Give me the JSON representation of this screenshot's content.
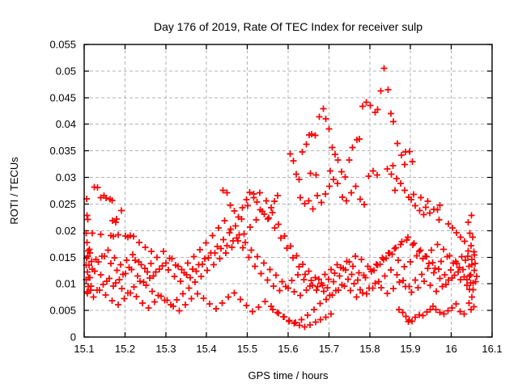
{
  "window": {
    "background": "#ffffff"
  },
  "chart_data": {
    "type": "scatter",
    "title": "Day 176 of 2019, Rate Of TEC Index for receiver sulp",
    "xlabel": "GPS time / hours",
    "ylabel": "ROTI / TECUs",
    "xlim": [
      15.1,
      16.1
    ],
    "ylim": [
      0,
      0.055
    ],
    "xticks": [
      15.1,
      15.2,
      15.3,
      15.4,
      15.5,
      15.6,
      15.7,
      15.8,
      15.9,
      16,
      16.1
    ],
    "xtick_labels": [
      "15.1",
      "15.2",
      "15.3",
      "15.4",
      "15.5",
      "15.6",
      "15.7",
      "15.8",
      "15.9",
      "16",
      "16.1"
    ],
    "yticks": [
      0,
      0.005,
      0.01,
      0.015,
      0.02,
      0.025,
      0.03,
      0.035,
      0.04,
      0.045,
      0.05,
      0.055
    ],
    "ytick_labels": [
      "0",
      "0.005",
      "0.01",
      "0.015",
      "0.02",
      "0.025",
      "0.03",
      "0.035",
      "0.04",
      "0.045",
      "0.05",
      "0.055"
    ],
    "grid": true,
    "grid_color": "#b3b3b3",
    "axis_color": "#000000",
    "legend": "none",
    "marker": "plus",
    "marker_color": "#ff0000",
    "tracks": [
      {
        "x_start": 15.105,
        "x_step": 0.015,
        "y": [
          0.0135,
          0.0128,
          0.0141,
          0.0152,
          0.0138,
          0.0125,
          0.0118,
          0.0131,
          0.0144,
          0.0136,
          0.0122,
          0.0115,
          0.0128,
          0.0139,
          0.0147,
          0.0133,
          0.0121,
          0.0112,
          0.0124,
          0.0137,
          0.0149,
          0.0158,
          0.0166,
          0.0172,
          0.0181,
          0.0192,
          0.0178,
          0.0163,
          0.0151,
          0.0139,
          0.0127,
          0.0116,
          0.0104,
          0.0092,
          0.0085,
          0.0078,
          0.0088,
          0.0097,
          0.0109,
          0.0118,
          0.0127,
          0.0136,
          0.0129,
          0.0141,
          0.0152,
          0.0146,
          0.0133,
          0.0125,
          0.0137,
          0.0148,
          0.0156,
          0.0144,
          0.0132,
          0.0141,
          0.0153,
          0.0147,
          0.0138,
          0.0129,
          0.0142,
          0.0151,
          0.0139,
          0.0131,
          0.0144,
          0.0136
        ]
      },
      {
        "x_start": 15.108,
        "x_step": 0.015,
        "y": [
          0.0082,
          0.0075,
          0.0088,
          0.0079,
          0.0068,
          0.0061,
          0.0072,
          0.0083,
          0.0076,
          0.0064,
          0.0055,
          0.0066,
          0.0077,
          0.0069,
          0.0058,
          0.0049,
          0.0061,
          0.0072,
          0.0081,
          0.0073,
          0.0062,
          0.0053,
          0.0064,
          0.0075,
          0.0083,
          0.0071,
          0.0059,
          0.0048,
          0.0056,
          0.0067,
          0.0058,
          0.0046,
          0.0038,
          0.0031,
          0.0027,
          0.0033,
          0.0041,
          0.0052,
          0.0063,
          0.0071,
          0.0079,
          0.0088,
          0.0096,
          0.0087,
          0.0075,
          0.0083,
          0.0092,
          0.0101,
          0.0093,
          0.0082,
          0.0091,
          0.0103,
          0.0095,
          0.0084,
          0.0093,
          0.0105,
          0.0097,
          0.0086,
          0.0095,
          0.0107,
          0.0116,
          0.0108,
          0.0097,
          0.0089
        ]
      },
      {
        "x_start": 15.111,
        "x_step": 0.015,
        "y": [
          0.0112,
          0.0124,
          0.0117,
          0.0105,
          0.0096,
          0.0108,
          0.0119,
          0.0127,
          0.0115,
          0.0103,
          0.0111,
          0.0122,
          0.0134,
          0.0126,
          0.0114,
          0.0105,
          0.0117,
          0.0128,
          0.0136,
          0.0147,
          0.0158,
          0.017,
          0.0183,
          0.0196,
          0.0209,
          0.0222,
          0.0247,
          0.0262,
          0.0271,
          0.0256,
          0.0234,
          0.0212,
          0.019,
          0.0171,
          0.0153,
          0.0137,
          0.0124,
          0.0112,
          0.0101,
          0.0093,
          0.0104,
          0.0115,
          0.0126,
          0.0118,
          0.0107,
          0.0116,
          0.0128,
          0.0137,
          0.0149,
          0.0158,
          0.0166,
          0.0174,
          0.0182,
          0.0173,
          0.0161,
          0.0152,
          0.0163,
          0.0174,
          0.0165,
          0.0153,
          0.0142,
          0.0151,
          0.0162,
          0.0154
        ]
      },
      {
        "x_start": 15.114,
        "x_step": 0.015,
        "y": [
          0.0158,
          0.0146,
          0.0152,
          0.0163,
          0.0149,
          0.0136,
          0.0144,
          0.0155,
          0.0141,
          0.0129,
          0.0138,
          0.015,
          0.0161,
          0.0148,
          0.0135,
          0.0127,
          0.0139,
          0.0151,
          0.0164,
          0.0177,
          0.0191,
          0.0205,
          0.0219,
          0.0203,
          0.0186,
          0.0168,
          0.015,
          0.0133,
          0.0119,
          0.0107,
          0.0096,
          0.0087,
          0.0095,
          0.0106,
          0.0117,
          0.0108,
          0.0096,
          0.0088,
          0.0097,
          0.0109,
          0.012,
          0.0131,
          0.0142,
          0.0133,
          0.0121,
          0.0112,
          0.0123,
          0.0135,
          0.0146,
          0.0157,
          0.0168,
          0.0179,
          0.0188,
          0.0176,
          0.0163,
          0.0151,
          0.014,
          0.0128,
          0.0117,
          0.0126,
          0.0138,
          0.0127,
          0.0115,
          0.0104
        ]
      },
      {
        "x_start": 15.117,
        "x_step": 0.015,
        "y": [
          0.0096,
          0.0088,
          0.0099,
          0.011,
          0.0102,
          0.0091,
          0.0083,
          0.0094,
          0.0105,
          0.0097,
          0.0086,
          0.0078,
          0.0069,
          0.0061,
          0.007,
          0.0081,
          0.0092,
          0.0103,
          0.0114,
          0.0125,
          0.0136,
          0.0147,
          0.0158,
          0.0169,
          0.0181,
          0.0194,
          0.0207,
          0.022,
          0.0236,
          0.0224,
          0.0205,
          0.0186,
          0.0167,
          0.0149,
          0.0132,
          0.0118,
          0.0106,
          0.0095,
          0.0086,
          0.0078,
          0.0087,
          0.0098,
          0.0109,
          0.01,
          0.0089,
          0.0081,
          0.0092,
          0.0104,
          0.0115,
          0.0126,
          0.0117,
          0.0106,
          0.0095,
          0.0107,
          0.0118,
          0.0129,
          0.0121,
          0.011,
          0.0099,
          0.0111,
          0.0122,
          0.0113,
          0.0102,
          0.0114
        ]
      }
    ],
    "points": [
      [
        15.125,
        0.0282
      ],
      [
        15.133,
        0.0281
      ],
      [
        15.141,
        0.0262
      ],
      [
        15.149,
        0.0266
      ],
      [
        15.154,
        0.0261
      ],
      [
        15.163,
        0.0259
      ],
      [
        15.168,
        0.0257
      ],
      [
        15.106,
        0.026
      ],
      [
        15.107,
        0.0229
      ],
      [
        15.109,
        0.0221
      ],
      [
        15.169,
        0.0219
      ],
      [
        15.177,
        0.0216
      ],
      [
        15.179,
        0.0222
      ],
      [
        15.191,
        0.0238
      ],
      [
        15.12,
        0.0195
      ],
      [
        15.141,
        0.0193
      ],
      [
        15.165,
        0.0191
      ],
      [
        15.171,
        0.0189
      ],
      [
        15.183,
        0.0192
      ],
      [
        15.201,
        0.019
      ],
      [
        15.207,
        0.0188
      ],
      [
        15.213,
        0.0191
      ],
      [
        15.221,
        0.0189
      ],
      [
        15.235,
        0.0178
      ],
      [
        15.25,
        0.0169
      ],
      [
        15.265,
        0.0161
      ],
      [
        15.605,
        0.0344
      ],
      [
        15.613,
        0.0331
      ],
      [
        15.62,
        0.0306
      ],
      [
        15.627,
        0.0296
      ],
      [
        15.635,
        0.0348
      ],
      [
        15.645,
        0.0362
      ],
      [
        15.652,
        0.038
      ],
      [
        15.658,
        0.0381
      ],
      [
        15.666,
        0.0379
      ],
      [
        15.676,
        0.0414
      ],
      [
        15.686,
        0.0429
      ],
      [
        15.692,
        0.041
      ],
      [
        15.7,
        0.0391
      ],
      [
        15.708,
        0.0356
      ],
      [
        15.715,
        0.0343
      ],
      [
        15.722,
        0.0333
      ],
      [
        15.731,
        0.0311
      ],
      [
        15.74,
        0.0301
      ],
      [
        15.75,
        0.0333
      ],
      [
        15.758,
        0.0356
      ],
      [
        15.769,
        0.0371
      ],
      [
        15.775,
        0.0372
      ],
      [
        15.783,
        0.0434
      ],
      [
        15.791,
        0.0441
      ],
      [
        15.801,
        0.0435
      ],
      [
        15.813,
        0.0422
      ],
      [
        15.819,
        0.0428
      ],
      [
        15.827,
        0.0463
      ],
      [
        15.835,
        0.0505
      ],
      [
        15.845,
        0.0465
      ],
      [
        15.852,
        0.042
      ],
      [
        15.858,
        0.0405
      ],
      [
        15.868,
        0.0364
      ],
      [
        15.878,
        0.0342
      ],
      [
        15.888,
        0.0348
      ],
      [
        15.898,
        0.0349
      ],
      [
        15.905,
        0.033
      ],
      [
        15.886,
        0.0324
      ],
      [
        15.63,
        0.0262
      ],
      [
        15.641,
        0.0251
      ],
      [
        15.651,
        0.0256
      ],
      [
        15.661,
        0.0241
      ],
      [
        15.671,
        0.0266
      ],
      [
        15.681,
        0.0253
      ],
      [
        15.691,
        0.0269
      ],
      [
        15.701,
        0.0283
      ],
      [
        15.711,
        0.0296
      ],
      [
        15.721,
        0.0289
      ],
      [
        15.655,
        0.0308
      ],
      [
        15.668,
        0.0305
      ],
      [
        15.703,
        0.0312
      ],
      [
        15.733,
        0.0263
      ],
      [
        15.743,
        0.0256
      ],
      [
        15.755,
        0.0271
      ],
      [
        15.766,
        0.0283
      ],
      [
        15.777,
        0.0259
      ],
      [
        15.787,
        0.0249
      ],
      [
        15.797,
        0.0302
      ],
      [
        15.808,
        0.0312
      ],
      [
        15.818,
        0.0305
      ],
      [
        15.843,
        0.0316
      ],
      [
        15.853,
        0.0306
      ],
      [
        15.857,
        0.0322
      ],
      [
        15.866,
        0.0298
      ],
      [
        15.876,
        0.0289
      ],
      [
        15.886,
        0.0276
      ],
      [
        15.896,
        0.0263
      ],
      [
        15.862,
        0.0276
      ],
      [
        15.902,
        0.0258
      ],
      [
        15.912,
        0.0247
      ],
      [
        15.922,
        0.0238
      ],
      [
        15.932,
        0.023
      ],
      [
        15.937,
        0.0244
      ],
      [
        15.947,
        0.0233
      ],
      [
        15.957,
        0.024
      ],
      [
        15.966,
        0.0239
      ],
      [
        15.972,
        0.0248
      ],
      [
        15.97,
        0.022
      ],
      [
        15.993,
        0.0213
      ],
      [
        16.003,
        0.0205
      ],
      [
        16.013,
        0.0196
      ],
      [
        16.023,
        0.0188
      ],
      [
        16.033,
        0.018
      ],
      [
        16.041,
        0.0216
      ],
      [
        16.049,
        0.0229
      ],
      [
        15.925,
        0.0262
      ],
      [
        15.942,
        0.0255
      ],
      [
        15.908,
        0.0268
      ],
      [
        15.562,
        0.0052
      ],
      [
        15.576,
        0.0045
      ],
      [
        15.59,
        0.0038
      ],
      [
        15.602,
        0.003
      ],
      [
        15.615,
        0.0026
      ],
      [
        15.628,
        0.0022
      ],
      [
        15.641,
        0.0019
      ],
      [
        15.654,
        0.0023
      ],
      [
        15.667,
        0.0028
      ],
      [
        15.679,
        0.0033
      ],
      [
        15.692,
        0.0037
      ],
      [
        15.705,
        0.0043
      ],
      [
        15.44,
        0.0276
      ],
      [
        15.45,
        0.0271
      ],
      [
        15.458,
        0.0248
      ],
      [
        15.468,
        0.0237
      ],
      [
        15.478,
        0.0226
      ],
      [
        15.488,
        0.0243
      ],
      [
        15.498,
        0.0258
      ],
      [
        15.506,
        0.0272
      ],
      [
        15.516,
        0.0269
      ],
      [
        15.524,
        0.0254
      ],
      [
        15.532,
        0.0239
      ],
      [
        15.541,
        0.0231
      ],
      [
        15.55,
        0.0222
      ],
      [
        15.558,
        0.0243
      ],
      [
        15.566,
        0.0255
      ],
      [
        15.574,
        0.0266
      ],
      [
        16.045,
        0.0195
      ],
      [
        16.052,
        0.0188
      ],
      [
        16.048,
        0.0172
      ],
      [
        16.055,
        0.016
      ],
      [
        16.05,
        0.0146
      ],
      [
        16.043,
        0.0133
      ],
      [
        16.047,
        0.0117
      ],
      [
        16.053,
        0.0102
      ],
      [
        16.044,
        0.009
      ],
      [
        16.05,
        0.0075
      ],
      [
        16.056,
        0.0125
      ],
      [
        16.04,
        0.0152
      ],
      [
        16.038,
        0.0108
      ],
      [
        16.058,
        0.0138
      ],
      [
        15.105,
        0.0195
      ],
      [
        15.107,
        0.0178
      ],
      [
        15.11,
        0.0162
      ],
      [
        15.106,
        0.0148
      ],
      [
        15.112,
        0.0135
      ],
      [
        15.108,
        0.0122
      ],
      [
        15.105,
        0.0108
      ],
      [
        15.11,
        0.0095
      ],
      [
        15.107,
        0.0085
      ],
      [
        15.113,
        0.0165
      ],
      [
        15.109,
        0.0152
      ],
      [
        15.114,
        0.0112
      ],
      [
        15.118,
        0.0142
      ],
      [
        15.116,
        0.0088
      ],
      [
        15.955,
        0.0058
      ],
      [
        15.962,
        0.0052
      ],
      [
        15.972,
        0.0046
      ],
      [
        15.982,
        0.0043
      ],
      [
        15.992,
        0.0049
      ],
      [
        16.002,
        0.0055
      ],
      [
        16.012,
        0.0062
      ],
      [
        16.022,
        0.0048
      ],
      [
        16.032,
        0.0043
      ],
      [
        16.043,
        0.0064
      ],
      [
        16.048,
        0.0052
      ],
      [
        16.055,
        0.0057
      ],
      [
        15.881,
        0.0046
      ],
      [
        15.889,
        0.0039
      ],
      [
        15.897,
        0.0032
      ],
      [
        15.904,
        0.003
      ],
      [
        15.912,
        0.0037
      ],
      [
        15.921,
        0.0042
      ],
      [
        15.93,
        0.004
      ],
      [
        15.94,
        0.0047
      ],
      [
        15.948,
        0.0052
      ],
      [
        15.872,
        0.0052
      ],
      [
        15.895,
        0.0029
      ]
    ]
  }
}
